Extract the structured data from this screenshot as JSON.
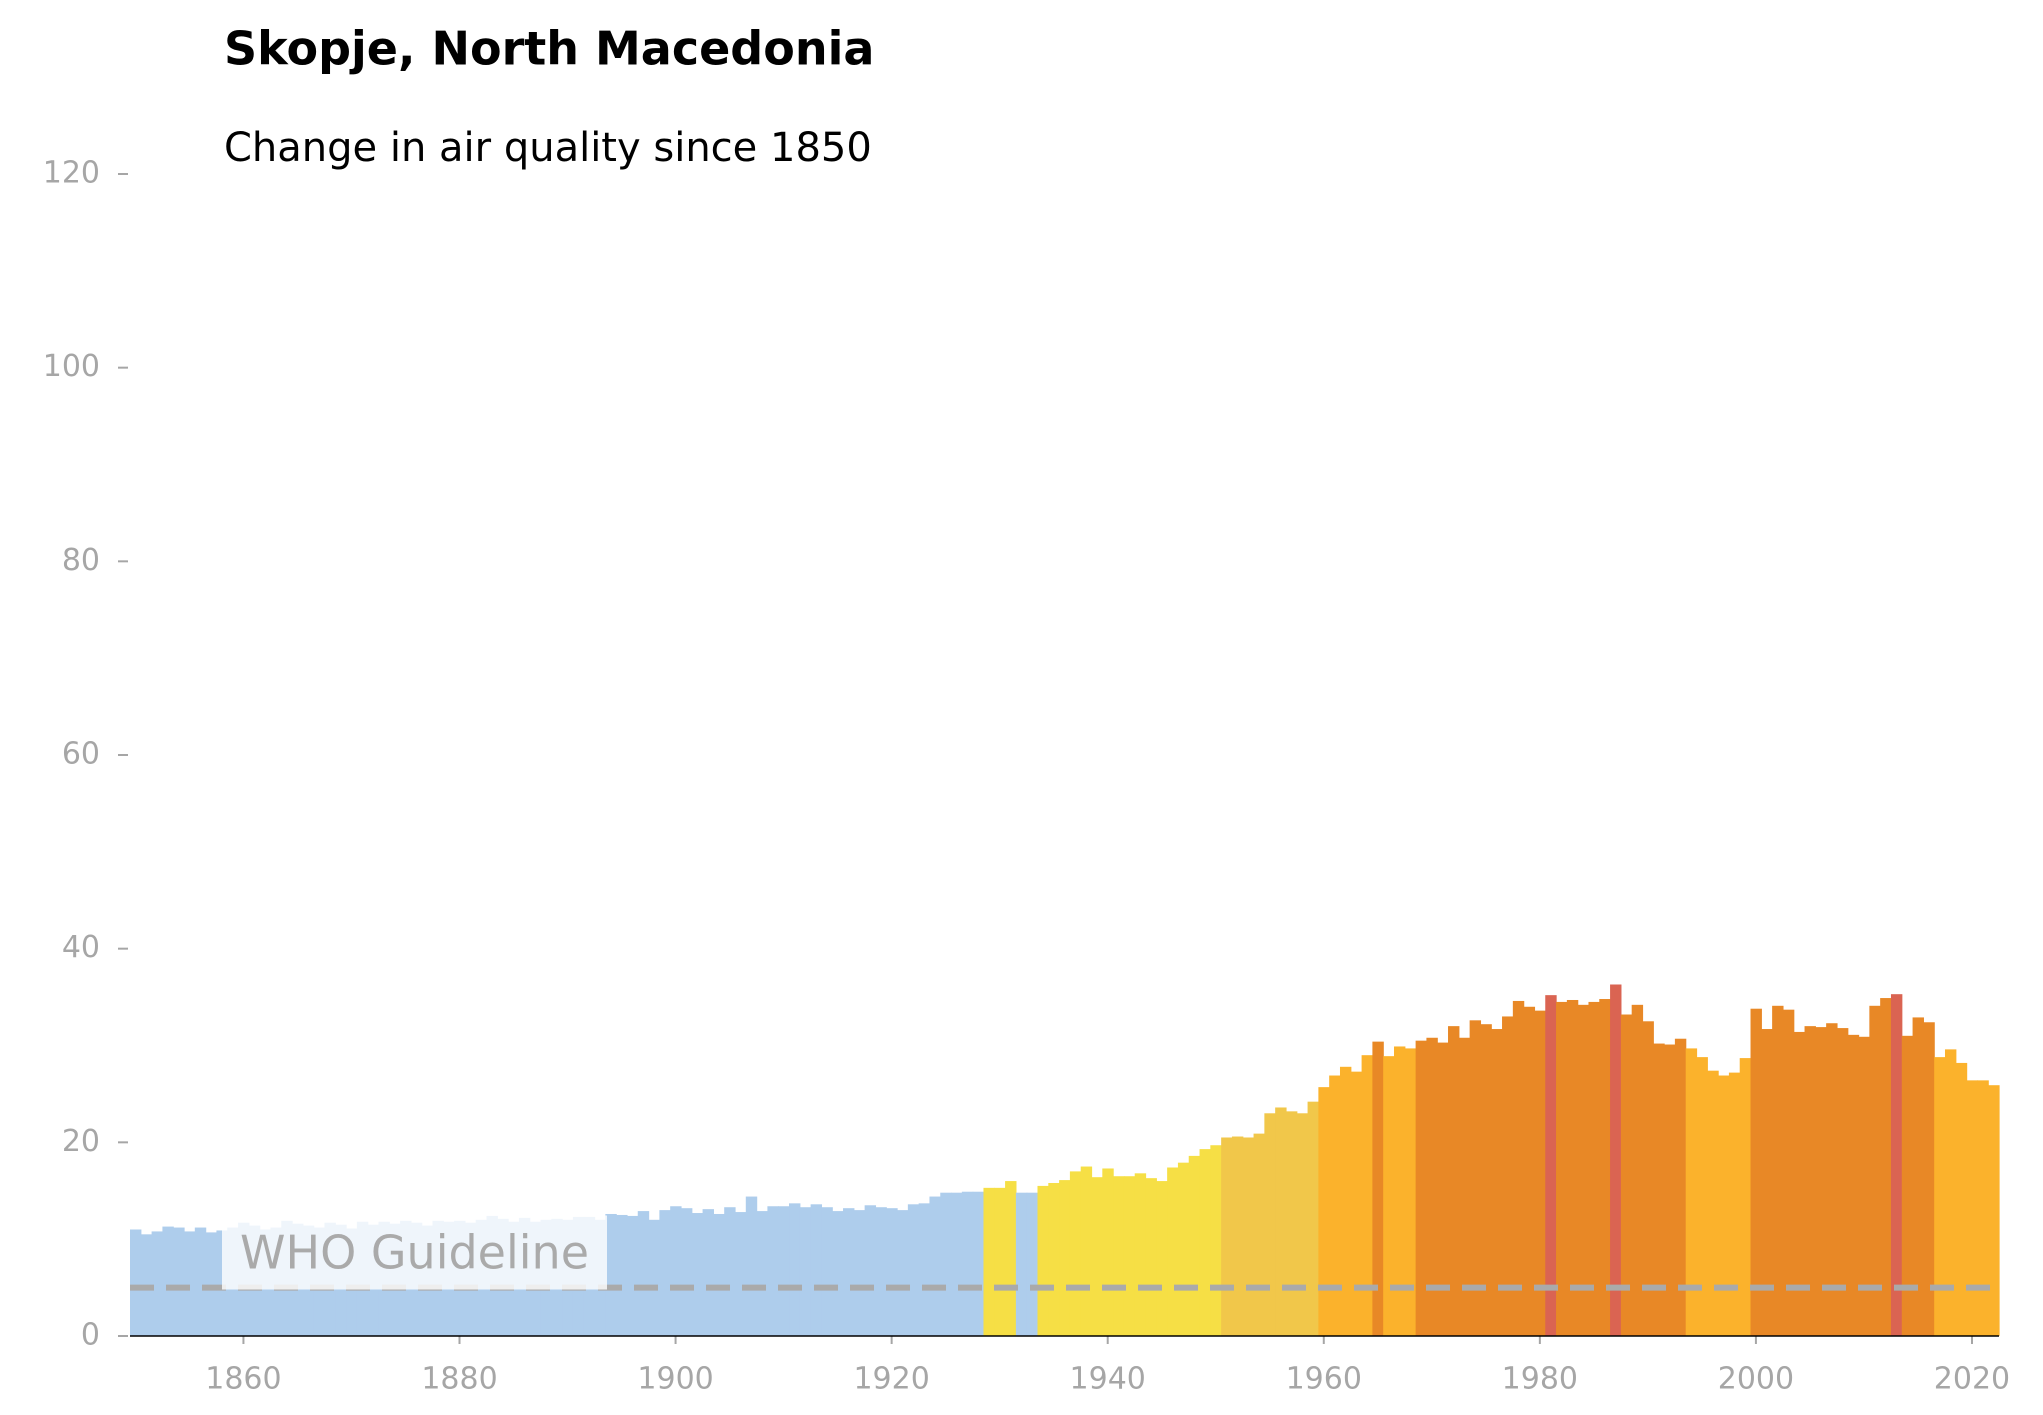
{
  "chart_data": {
    "type": "bar",
    "title": "Skopje, North Macedonia",
    "subtitle": "Change in air quality since 1850",
    "x": [
      1850,
      1851,
      1852,
      1853,
      1854,
      1855,
      1856,
      1857,
      1858,
      1859,
      1860,
      1861,
      1862,
      1863,
      1864,
      1865,
      1866,
      1867,
      1868,
      1869,
      1870,
      1871,
      1872,
      1873,
      1874,
      1875,
      1876,
      1877,
      1878,
      1879,
      1880,
      1881,
      1882,
      1883,
      1884,
      1885,
      1886,
      1887,
      1888,
      1889,
      1890,
      1891,
      1892,
      1893,
      1894,
      1895,
      1896,
      1897,
      1898,
      1899,
      1900,
      1901,
      1902,
      1903,
      1904,
      1905,
      1906,
      1907,
      1908,
      1909,
      1910,
      1911,
      1912,
      1913,
      1914,
      1915,
      1916,
      1917,
      1918,
      1919,
      1920,
      1921,
      1922,
      1923,
      1924,
      1925,
      1926,
      1927,
      1928,
      1929,
      1930,
      1931,
      1932,
      1933,
      1934,
      1935,
      1936,
      1937,
      1938,
      1939,
      1940,
      1941,
      1942,
      1943,
      1944,
      1945,
      1946,
      1947,
      1948,
      1949,
      1950,
      1951,
      1952,
      1953,
      1954,
      1955,
      1956,
      1957,
      1958,
      1959,
      1960,
      1961,
      1962,
      1963,
      1964,
      1965,
      1966,
      1967,
      1968,
      1969,
      1970,
      1971,
      1972,
      1973,
      1974,
      1975,
      1976,
      1977,
      1978,
      1979,
      1980,
      1981,
      1982,
      1983,
      1984,
      1985,
      1986,
      1987,
      1988,
      1989,
      1990,
      1991,
      1992,
      1993,
      1994,
      1995,
      1996,
      1997,
      1998,
      1999,
      2000,
      2001,
      2002,
      2003,
      2004,
      2005,
      2006,
      2007,
      2008,
      2009,
      2010,
      2011,
      2012,
      2013,
      2014,
      2015,
      2016,
      2017,
      2018,
      2019,
      2020,
      2021,
      2022
    ],
    "values": [
      11.0,
      10.5,
      10.8,
      11.3,
      11.2,
      10.8,
      11.2,
      10.7,
      10.9,
      11.2,
      11.7,
      11.4,
      11.0,
      11.2,
      11.9,
      11.6,
      11.4,
      11.2,
      11.7,
      11.5,
      11.1,
      11.8,
      11.5,
      11.8,
      11.6,
      11.9,
      11.7,
      11.4,
      11.9,
      11.8,
      11.9,
      11.7,
      12.0,
      12.4,
      12.1,
      11.8,
      12.2,
      11.8,
      12.0,
      12.1,
      12.0,
      12.3,
      12.3,
      12.0,
      12.6,
      12.5,
      12.4,
      12.9,
      12.0,
      13.0,
      13.4,
      13.2,
      12.7,
      13.1,
      12.6,
      13.3,
      12.8,
      14.4,
      12.9,
      13.4,
      13.4,
      13.7,
      13.3,
      13.6,
      13.3,
      12.9,
      13.2,
      13.0,
      13.5,
      13.3,
      13.2,
      13.0,
      13.6,
      13.7,
      14.4,
      14.8,
      14.8,
      14.9,
      14.9,
      15.3,
      15.3,
      16.0,
      14.8,
      14.8,
      15.5,
      15.8,
      16.1,
      17.0,
      17.5,
      16.4,
      17.3,
      16.5,
      16.5,
      16.8,
      16.3,
      16.0,
      17.4,
      17.9,
      18.6,
      19.3,
      19.7,
      20.5,
      20.6,
      20.5,
      20.9,
      23.0,
      23.6,
      23.2,
      23.0,
      24.2,
      25.7,
      26.9,
      27.8,
      27.3,
      29.0,
      30.4,
      28.9,
      29.9,
      29.7,
      30.5,
      30.8,
      30.3,
      32.0,
      30.8,
      32.6,
      32.2,
      31.7,
      33.0,
      34.6,
      34.0,
      33.6,
      35.2,
      34.5,
      34.7,
      34.2,
      34.5,
      34.8,
      36.3,
      33.2,
      34.2,
      32.5,
      30.2,
      30.1,
      30.7,
      29.7,
      28.8,
      27.4,
      26.9,
      27.2,
      28.7,
      33.8,
      31.7,
      34.1,
      33.7,
      31.4,
      32.0,
      31.9,
      32.3,
      31.8,
      31.1,
      30.9,
      34.1,
      34.9,
      35.3,
      31.0,
      32.9,
      32.4,
      28.8,
      29.6,
      28.2,
      26.4,
      26.4,
      25.9
    ],
    "colors": [
      "#aecdec",
      "#aecdec",
      "#aecdec",
      "#aecdec",
      "#aecdec",
      "#aecdec",
      "#aecdec",
      "#aecdec",
      "#aecdec",
      "#aecdec",
      "#aecdec",
      "#aecdec",
      "#aecdec",
      "#aecdec",
      "#aecdec",
      "#aecdec",
      "#aecdec",
      "#aecdec",
      "#aecdec",
      "#aecdec",
      "#aecdec",
      "#aecdec",
      "#aecdec",
      "#aecdec",
      "#aecdec",
      "#aecdec",
      "#aecdec",
      "#aecdec",
      "#aecdec",
      "#aecdec",
      "#aecdec",
      "#aecdec",
      "#aecdec",
      "#aecdec",
      "#aecdec",
      "#aecdec",
      "#aecdec",
      "#aecdec",
      "#aecdec",
      "#aecdec",
      "#aecdec",
      "#aecdec",
      "#aecdec",
      "#aecdec",
      "#aecdec",
      "#aecdec",
      "#aecdec",
      "#aecdec",
      "#aecdec",
      "#aecdec",
      "#aecdec",
      "#aecdec",
      "#aecdec",
      "#aecdec",
      "#aecdec",
      "#aecdec",
      "#aecdec",
      "#aecdec",
      "#aecdec",
      "#aecdec",
      "#aecdec",
      "#aecdec",
      "#aecdec",
      "#aecdec",
      "#aecdec",
      "#aecdec",
      "#aecdec",
      "#aecdec",
      "#aecdec",
      "#aecdec",
      "#aecdec",
      "#aecdec",
      "#aecdec",
      "#aecdec",
      "#aecdec",
      "#aecdec",
      "#aecdec",
      "#aecdec",
      "#aecdec",
      "#f6df45",
      "#f6df45",
      "#f6df45",
      "#aecdec",
      "#aecdec",
      "#f6df45",
      "#f6df45",
      "#f6df45",
      "#f6df45",
      "#f6df45",
      "#f6df45",
      "#f6df45",
      "#f6df45",
      "#f6df45",
      "#f6df45",
      "#f6df45",
      "#f6df45",
      "#f6df45",
      "#f6df45",
      "#f6df45",
      "#f6df45",
      "#f6df45",
      "#f1c74a",
      "#f1c74a",
      "#f1c74a",
      "#f1c74a",
      "#f1c74a",
      "#f1c74a",
      "#f1c74a",
      "#f1c74a",
      "#f1c74a",
      "#fbb22c",
      "#fbb22c",
      "#fbb22c",
      "#fbb22c",
      "#fbb22c",
      "#e88826",
      "#fbb22c",
      "#fbb22c",
      "#fbb22c",
      "#e88826",
      "#e88826",
      "#e88826",
      "#e88826",
      "#e88826",
      "#e88826",
      "#e88826",
      "#e88826",
      "#e88826",
      "#e88826",
      "#e88826",
      "#e88826",
      "#da6452",
      "#e88826",
      "#e88826",
      "#e88826",
      "#e88826",
      "#e88826",
      "#da6452",
      "#e88826",
      "#e88826",
      "#e88826",
      "#e88826",
      "#e88826",
      "#e88826",
      "#fbb22c",
      "#fbb22c",
      "#fbb22c",
      "#fbb22c",
      "#fbb22c",
      "#fbb22c",
      "#e88826",
      "#e88826",
      "#e88826",
      "#e88826",
      "#e88826",
      "#e88826",
      "#e88826",
      "#e88826",
      "#e88826",
      "#e88826",
      "#e88826",
      "#e88826",
      "#e88826",
      "#da6452",
      "#e88826",
      "#e88826",
      "#e88826",
      "#fbb22c",
      "#fbb22c",
      "#fbb22c",
      "#fbb22c",
      "#fbb22c",
      "#fbb22c"
    ],
    "xlim": [
      1849.5,
      2022.5
    ],
    "xticks": [
      1860,
      1880,
      1900,
      1920,
      1940,
      1960,
      1980,
      2000,
      2020
    ],
    "ylim": [
      0,
      120
    ],
    "yticks": [
      0,
      20,
      40,
      60,
      80,
      100,
      120
    ],
    "reference_line": {
      "label": "WHO Guideline",
      "value": 5,
      "color": "#aaaaaa"
    }
  }
}
